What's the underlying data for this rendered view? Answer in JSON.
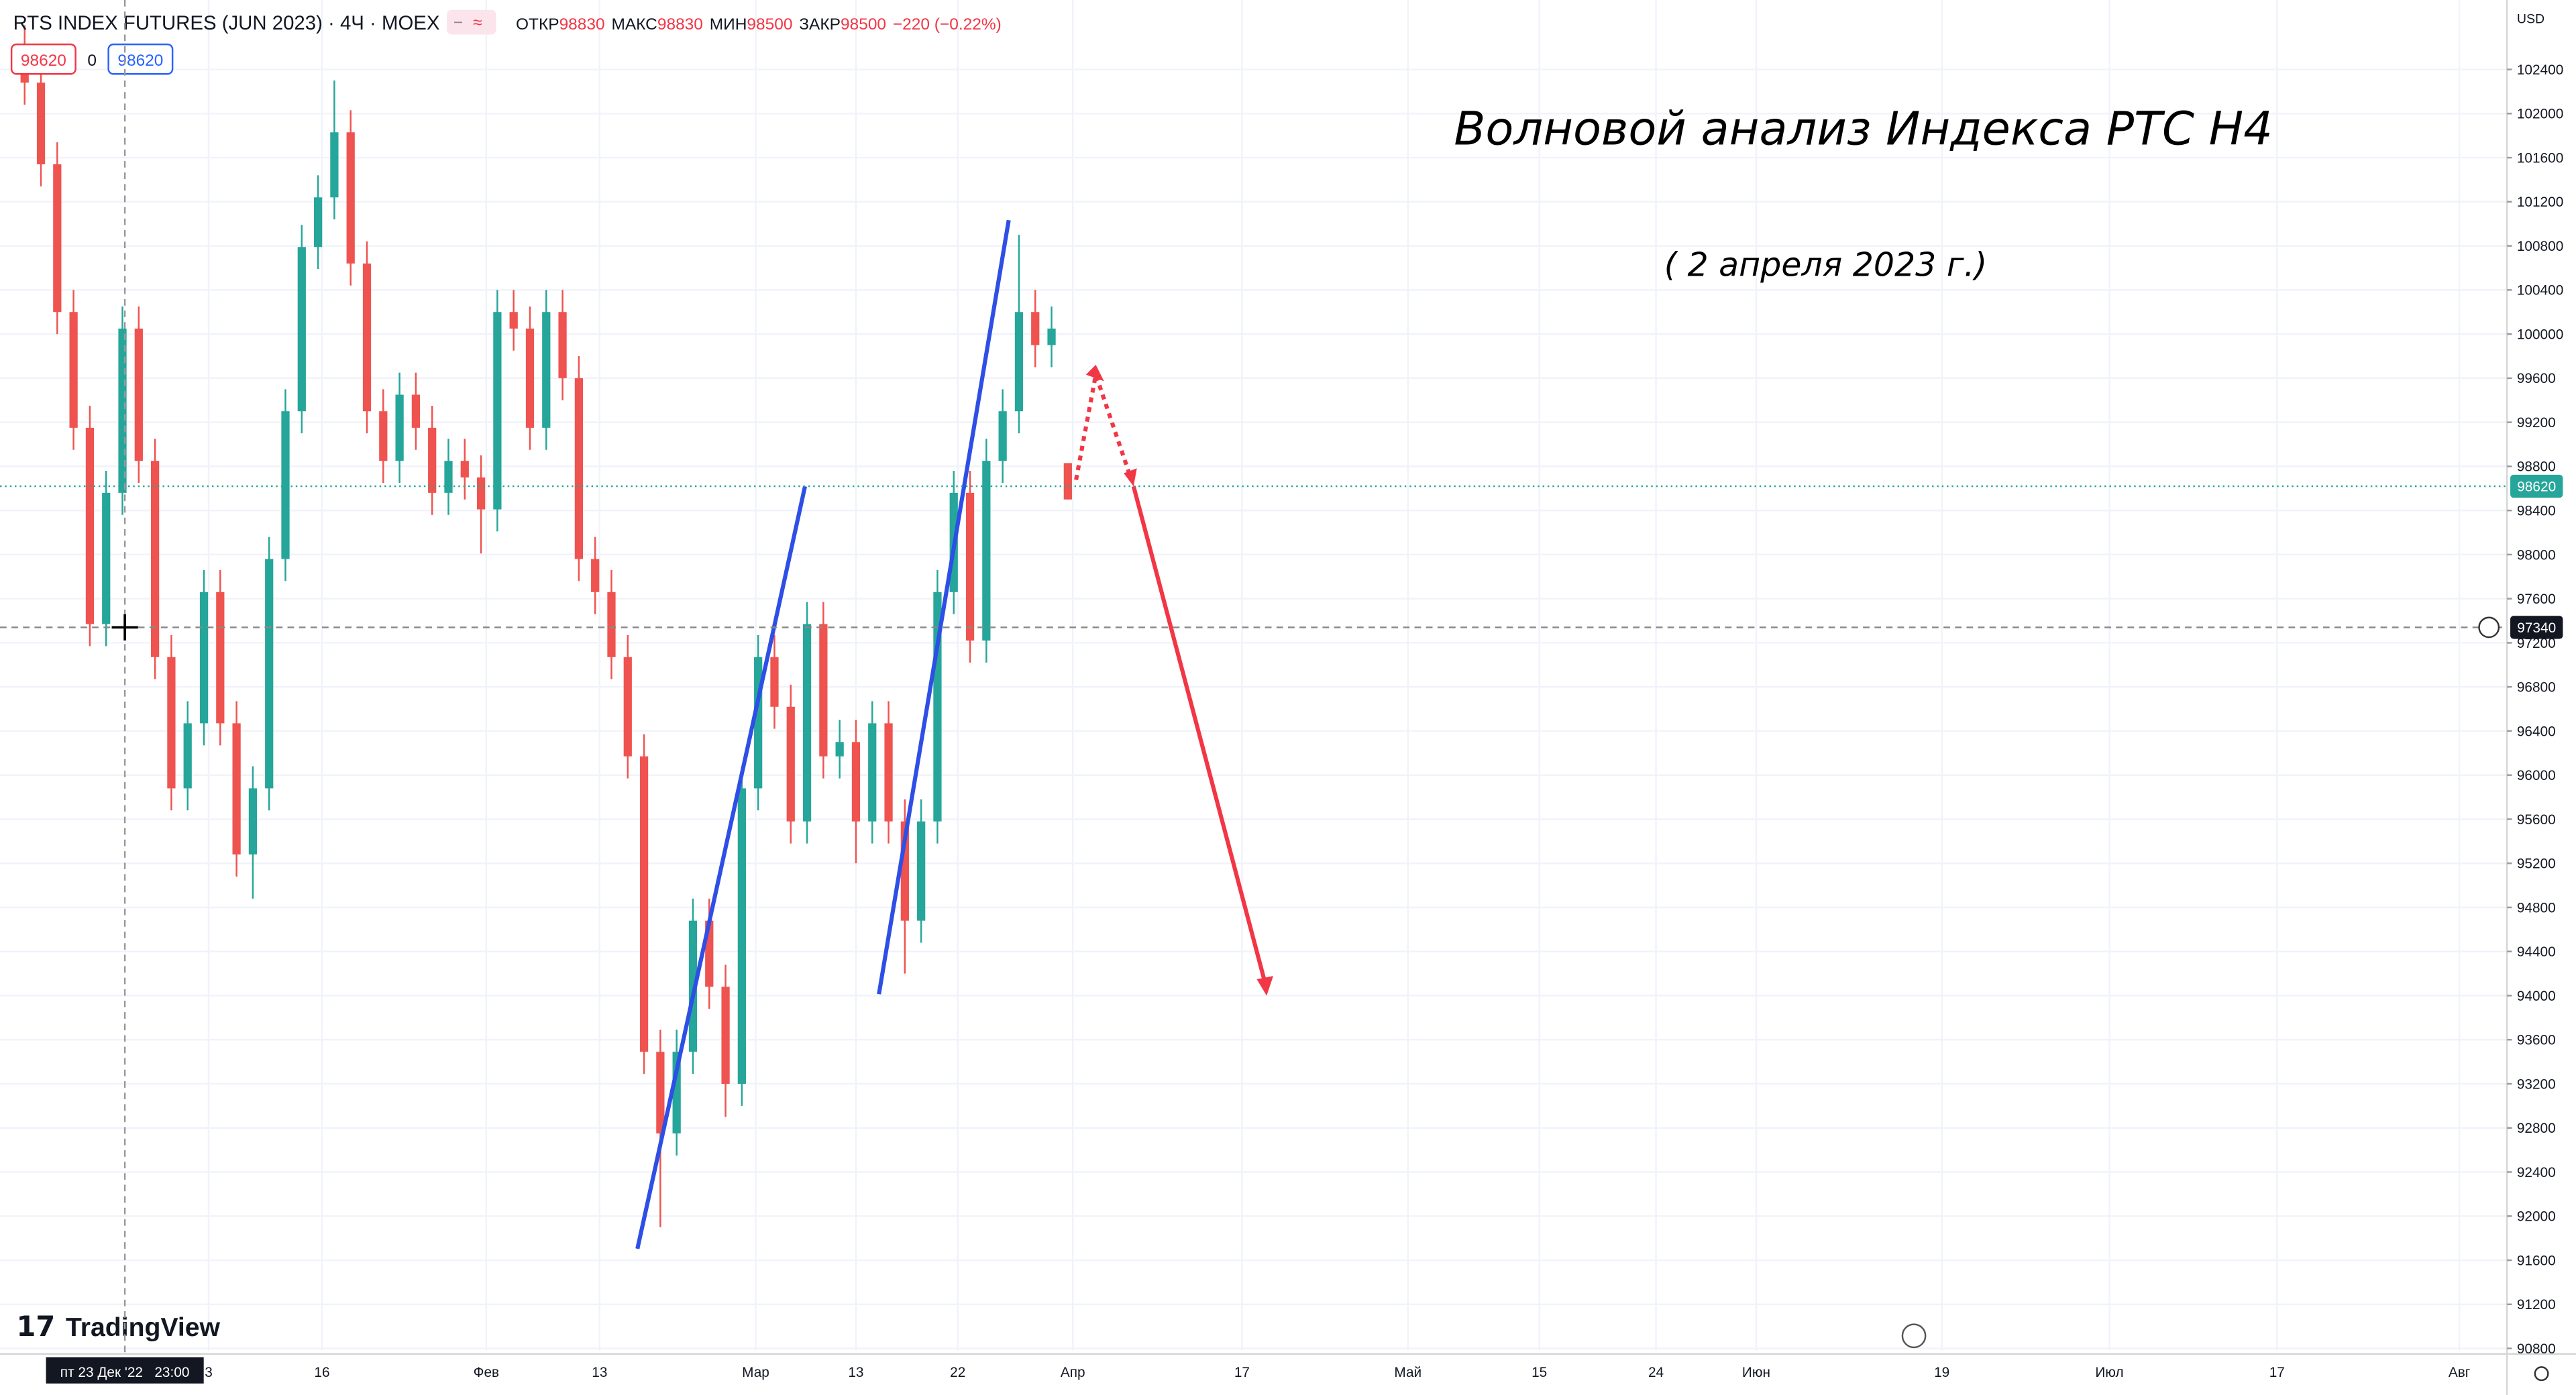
{
  "header": {
    "symbol": "RTS INDEX FUTURES (JUN 2023) · 4Ч · MOEX",
    "ohlc_labels": [
      "ОТКР",
      "МАКС",
      "МИН",
      "ЗАКР"
    ],
    "change": "−220 (−0.22%)",
    "bid": 98620,
    "spread": 0,
    "ask": 98620
  },
  "annotations": {
    "title": "Волновой анализ Индекса РТС Н4",
    "subtitle": "( 2 апреля 2023 г.)"
  },
  "watermark": "TradingView",
  "chart_data": {
    "type": "candlestick",
    "currency": "USD",
    "up_color": "#26a69a",
    "down_color": "#ef5350",
    "open": [
      102600,
      102280,
      101540,
      100200,
      99150,
      97370,
      98560,
      100050,
      98850,
      97070,
      95880,
      96470,
      97660,
      96470,
      95280,
      95880,
      97960,
      99300,
      100790,
      101240,
      101830,
      100640,
      99300,
      98850,
      99450,
      99150,
      98560,
      98850,
      98700,
      98410,
      100200,
      100050,
      99150,
      100200,
      99600,
      97960,
      97660,
      97070,
      96170,
      93490,
      92750,
      93490,
      94680,
      94080,
      93200,
      95880,
      97070,
      96620,
      95580,
      97370,
      96170,
      96300,
      95580,
      96470,
      95580,
      94680,
      95580,
      97660,
      98560,
      97220,
      98850,
      99300,
      100200,
      99900,
      98830
    ],
    "high": [
      102800,
      102480,
      101740,
      100400,
      99350,
      98760,
      100250,
      100250,
      99050,
      97270,
      96670,
      97860,
      97860,
      96670,
      96080,
      98160,
      99500,
      100990,
      101440,
      102300,
      102030,
      100840,
      99500,
      99650,
      99650,
      99350,
      99050,
      99050,
      98900,
      100400,
      100400,
      100250,
      100400,
      100400,
      99800,
      98160,
      97860,
      97270,
      96370,
      93690,
      93690,
      94880,
      94880,
      94280,
      96080,
      97270,
      97270,
      96820,
      97570,
      97570,
      96500,
      96500,
      96670,
      96670,
      95780,
      95780,
      97860,
      98760,
      98760,
      99050,
      99500,
      100900,
      100400,
      100250,
      98830
    ],
    "low": [
      102080,
      101340,
      100000,
      98950,
      97170,
      97170,
      98360,
      98650,
      96870,
      95680,
      95680,
      96270,
      96270,
      95080,
      94880,
      95680,
      97760,
      99100,
      100590,
      101040,
      100440,
      99100,
      98650,
      98650,
      98950,
      98360,
      98360,
      98500,
      98010,
      98210,
      99850,
      98950,
      98950,
      99400,
      97760,
      97460,
      96870,
      95970,
      93290,
      91900,
      92550,
      93290,
      93880,
      92900,
      93000,
      95680,
      96420,
      95380,
      95380,
      95970,
      95970,
      95200,
      95380,
      95380,
      94200,
      94480,
      95380,
      97460,
      97020,
      97020,
      98650,
      99100,
      99700,
      99700,
      98500
    ],
    "close": [
      102280,
      101540,
      100200,
      99150,
      97370,
      98560,
      100050,
      98850,
      97070,
      95880,
      96470,
      97660,
      96470,
      95280,
      95880,
      97960,
      99300,
      100790,
      101240,
      101830,
      100640,
      99300,
      98850,
      99450,
      99150,
      98560,
      98850,
      98700,
      98410,
      100200,
      100050,
      99150,
      100200,
      99600,
      97960,
      97660,
      97070,
      96170,
      93490,
      92750,
      93490,
      94680,
      94080,
      93200,
      95880,
      97070,
      96620,
      95580,
      97370,
      96170,
      96300,
      95580,
      96470,
      95580,
      94680,
      95580,
      97660,
      98560,
      97220,
      98850,
      99300,
      100200,
      99900,
      100050,
      98500
    ],
    "last_price": 98620,
    "crosshair_price": 97340,
    "crosshair_time": "пт 23 Дек '22   23:00",
    "ylim": [
      90780,
      103030
    ],
    "yticks": [
      90800,
      91200,
      91600,
      92000,
      92400,
      92800,
      93200,
      93600,
      94000,
      94400,
      94800,
      95200,
      95600,
      96000,
      96400,
      96800,
      97200,
      97600,
      98000,
      98400,
      98800,
      99200,
      99600,
      100000,
      100400,
      100800,
      101200,
      101600,
      102000,
      102400
    ],
    "xticks": [
      "3",
      "16",
      "Фев",
      "13",
      "Мар",
      "13",
      "22",
      "Апр",
      "17",
      "Май",
      "15",
      "24",
      "Июн",
      "19",
      "Июл",
      "17",
      "Авг"
    ],
    "grid": true
  }
}
